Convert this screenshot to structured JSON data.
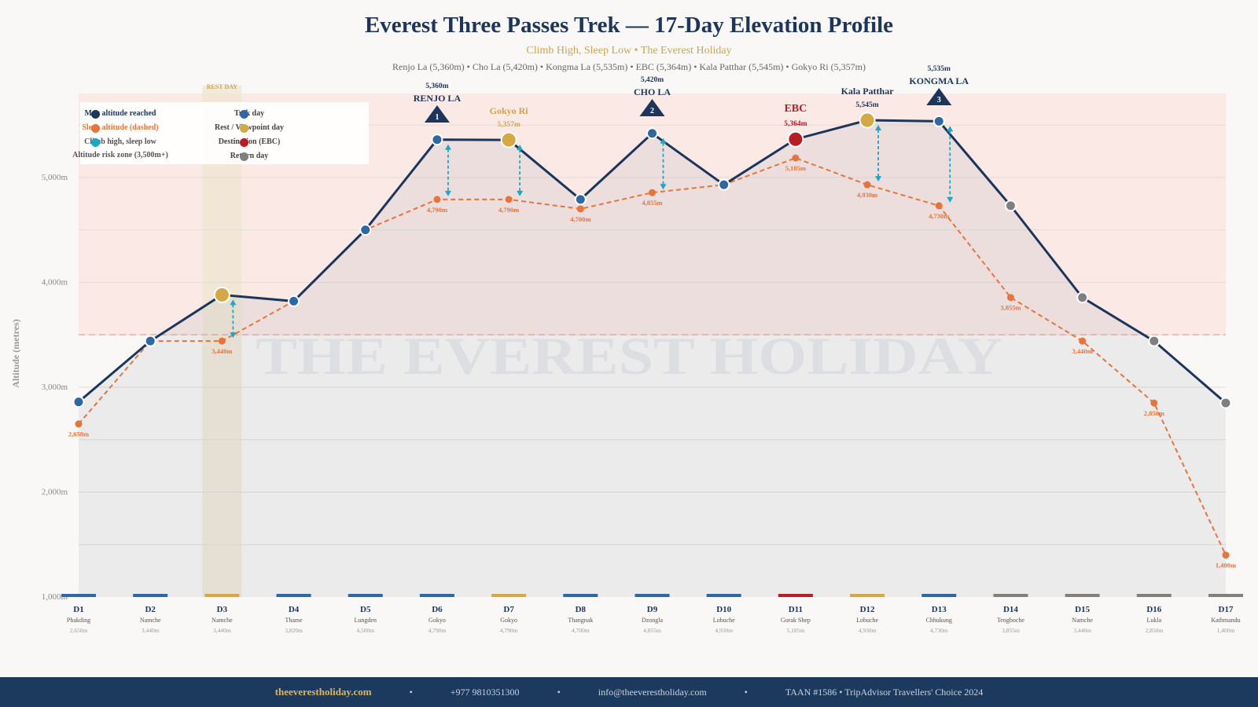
{
  "header": {
    "title": "Everest Three Passes Trek — 17-Day Elevation Profile",
    "subtitle": "Climb High, Sleep Low  •  The Everest Holiday",
    "passes": "Renjo La (5,360m)  •  Cho La (5,420m)  •  Kongma La (5,535m)  •  EBC (5,364m)  •  Kala Patthar (5,545m)  •  Gokyo Ri (5,357m)"
  },
  "legend": {
    "items": [
      {
        "label": "Max altitude reached",
        "color": "#1c355a"
      },
      {
        "label": "Sleep altitude (dashed)",
        "color": "#e8743b"
      },
      {
        "label": "Climb high, sleep low",
        "color": "#1aa8c4"
      },
      {
        "label": "Altitude risk zone (3,500m+)",
        "color": "#f6d9d6"
      },
      {
        "label": "Trek day",
        "color": "#2e67a6"
      },
      {
        "label": "Rest / Viewpoint day",
        "color": "#d4a843"
      },
      {
        "label": "Destination (EBC)",
        "color": "#b81c25"
      },
      {
        "label": "Return day",
        "color": "#808080"
      }
    ]
  },
  "chart_data": {
    "type": "line",
    "ylabel": "Altitude (metres)",
    "ylim": [
      1000,
      5800
    ],
    "yticks": [
      "1,000m",
      "2,000m",
      "3,000m",
      "4,000m",
      "5,000m"
    ],
    "ytick_values": [
      1000,
      2000,
      3000,
      4000,
      5000
    ],
    "grid": true,
    "risk_zone_threshold": 3500,
    "rest_day_band_label": "REST DAY",
    "watermark": "THE EVEREST HOLIDAY",
    "colors": {
      "trek": "#2e67a6",
      "rest": "#d4a843",
      "destination": "#b81c25",
      "return": "#808080",
      "max_line": "#1c355a",
      "sleep_line": "#e8743b",
      "arrow": "#1aa8c4"
    },
    "days": [
      {
        "day": "D1",
        "place": "Phakding",
        "max": 2860,
        "sleep": 2650,
        "sleep_label": "2,650m",
        "type": "trek"
      },
      {
        "day": "D2",
        "place": "Namche",
        "max": 3440,
        "sleep": 3440,
        "sleep_label": "3,440m",
        "type": "trek"
      },
      {
        "day": "D3",
        "place": "Namche",
        "max": 3880,
        "sleep": 3440,
        "sleep_label": "3,440m",
        "type": "rest"
      },
      {
        "day": "D4",
        "place": "Thame",
        "max": 3820,
        "sleep": 3820,
        "sleep_label": "3,820m",
        "type": "trek"
      },
      {
        "day": "D5",
        "place": "Lungden",
        "max": 4500,
        "sleep": 4500,
        "sleep_label": "4,500m",
        "type": "trek"
      },
      {
        "day": "D6",
        "place": "Gokyo",
        "max": 5360,
        "sleep": 4790,
        "sleep_label": "4,790m",
        "type": "trek"
      },
      {
        "day": "D7",
        "place": "Gokyo",
        "max": 5357,
        "sleep": 4790,
        "sleep_label": "4,790m",
        "type": "rest"
      },
      {
        "day": "D8",
        "place": "Thangnak",
        "max": 4790,
        "sleep": 4700,
        "sleep_label": "4,700m",
        "type": "trek"
      },
      {
        "day": "D9",
        "place": "Dzongla",
        "max": 5420,
        "sleep": 4855,
        "sleep_label": "4,855m",
        "type": "trek"
      },
      {
        "day": "D10",
        "place": "Lobuche",
        "max": 4930,
        "sleep": 4930,
        "sleep_label": "4,930m",
        "type": "trek"
      },
      {
        "day": "D11",
        "place": "Gorak Shep",
        "max": 5364,
        "sleep": 5185,
        "sleep_label": "5,185m",
        "type": "destination"
      },
      {
        "day": "D12",
        "place": "Lobuche",
        "max": 5545,
        "sleep": 4930,
        "sleep_label": "4,930m",
        "type": "rest"
      },
      {
        "day": "D13",
        "place": "Chhukung",
        "max": 5535,
        "sleep": 4730,
        "sleep_label": "4,730m",
        "type": "trek"
      },
      {
        "day": "D14",
        "place": "Tengboche",
        "max": 4730,
        "sleep": 3855,
        "sleep_label": "3,855m",
        "type": "return"
      },
      {
        "day": "D15",
        "place": "Namche",
        "max": 3855,
        "sleep": 3440,
        "sleep_label": "3,440m",
        "type": "return"
      },
      {
        "day": "D16",
        "place": "Lukla",
        "max": 3440,
        "sleep": 2850,
        "sleep_label": "2,850m",
        "type": "return"
      },
      {
        "day": "D17",
        "place": "Kathmandu",
        "max": 2850,
        "sleep": 1400,
        "sleep_label": "1,400m",
        "type": "return"
      }
    ],
    "sleep_labels_shown": [
      "D1",
      "D3",
      "D6",
      "D7",
      "D8",
      "D9",
      "D11",
      "D12",
      "D13",
      "D14",
      "D15",
      "D16",
      "D17"
    ],
    "climb_high_arrows": [
      "D3",
      "D6",
      "D7",
      "D9",
      "D12",
      "D13"
    ],
    "passes": [
      {
        "day": "D6",
        "number": "1",
        "name": "RENJO LA",
        "altitude": "5,360m"
      },
      {
        "day": "D9",
        "number": "2",
        "name": "CHO LA",
        "altitude": "5,420m"
      },
      {
        "day": "D13",
        "number": "3",
        "name": "KONGMA LA",
        "altitude": "5,535m"
      }
    ],
    "highlights": [
      {
        "day": "D7",
        "name": "Gokyo Ri",
        "altitude": "5,357m",
        "color": "#c9a64f"
      },
      {
        "day": "D11",
        "name": "EBC",
        "altitude": "5,364m",
        "color": "#b81c25"
      },
      {
        "day": "D12",
        "name": "Kala Patthar",
        "altitude": "5,545m",
        "color": "#1c355a"
      }
    ]
  },
  "footer": {
    "website": "theeverestholiday.com",
    "phone": "+977 9810351300",
    "email": "info@theeverestholiday.com",
    "credentials": "TAAN #1586  •  TripAdvisor Travellers' Choice 2024",
    "separator": "•"
  }
}
